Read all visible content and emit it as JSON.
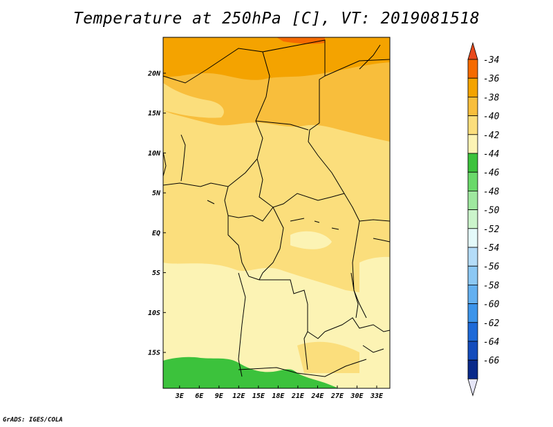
{
  "title": "Temperature at 250hPa [C], VT: 2019081518",
  "credit": "GrADS: IGES/COLA",
  "map": {
    "lon_labels": [
      "3E",
      "6E",
      "9E",
      "12E",
      "15E",
      "18E",
      "21E",
      "24E",
      "27E",
      "30E",
      "33E"
    ],
    "lon_values": [
      3,
      6,
      9,
      12,
      15,
      18,
      21,
      24,
      27,
      30,
      33
    ],
    "lat_labels": [
      "20N",
      "15N",
      "10N",
      "5N",
      "EQ",
      "5S",
      "10S",
      "15S"
    ],
    "lat_values": [
      20,
      15,
      10,
      5,
      0,
      -5,
      -10,
      -15
    ],
    "lon_range": [
      0.5,
      35
    ],
    "lat_range": [
      -19.5,
      24.5
    ]
  },
  "colorbar": {
    "labels": [
      "-34",
      "-36",
      "-38",
      "-40",
      "-42",
      "-44",
      "-46",
      "-48",
      "-50",
      "-52",
      "-54",
      "-56",
      "-58",
      "-60",
      "-62",
      "-64",
      "-66"
    ],
    "colors": [
      "#e8491c",
      "#f56a00",
      "#f4a300",
      "#f8be3c",
      "#fbde7c",
      "#fcf3b4",
      "#3cc23c",
      "#6ad96a",
      "#9fe89f",
      "#cbf4cb",
      "#e4fafa",
      "#b4dcf8",
      "#8cc8f4",
      "#64b0f0",
      "#3c94ea",
      "#1e6ad8",
      "#144cbc",
      "#0a2a8a",
      "#e6e6f8"
    ]
  },
  "colors": {
    "border_line": "#000000"
  }
}
